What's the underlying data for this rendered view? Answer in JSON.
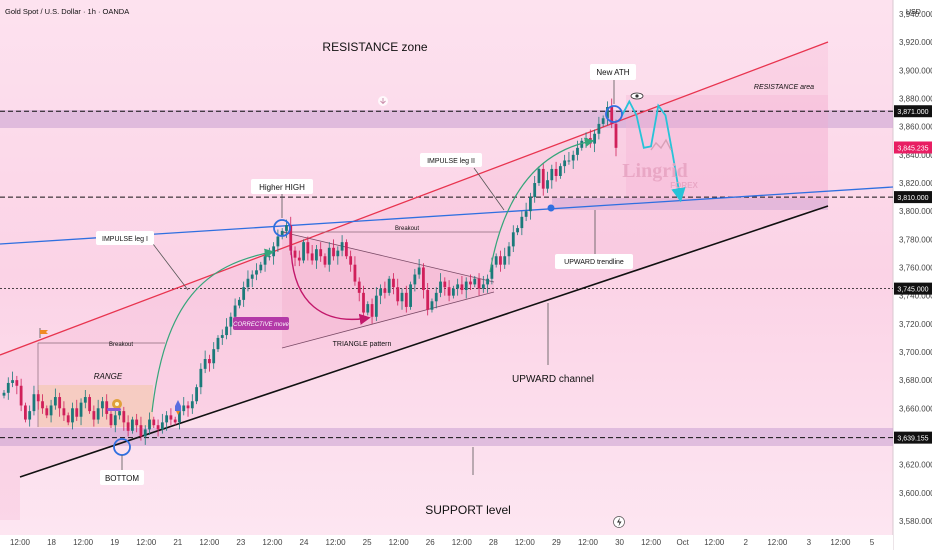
{
  "header": {
    "title": "Gold Spot / U.S. Dollar · 1h · OANDA",
    "currency": "USD"
  },
  "logo": {
    "word": "Lingrid",
    "sub": "FOREX"
  },
  "icons": [
    "eye-icon",
    "lightning-icon",
    "snail-icon",
    "rocket-icon",
    "flag-icon",
    "download-icon"
  ],
  "colors": {
    "background": "#fde7f2",
    "bull": "#1b7a7a",
    "bear": "#d0205a",
    "resistance_line": "#e8344f",
    "support_line": "#111111",
    "blue_trend": "#2f6fe0",
    "projection": "#27c3d8",
    "arrow_green": "#35a57a",
    "arrow_magenta": "#c2186b",
    "price_tag": "#e81e63"
  },
  "annotations": {
    "resistance_zone": "RESISTANCE zone",
    "resistance_area": "RESISTANCE area",
    "new_ath": "New ATH",
    "higher_high": "Higher HIGH",
    "impulse_leg_1": "IMPULSE leg I",
    "impulse_leg_2": "IMPULSE leg II",
    "breakout_1": "Breakout",
    "breakout_2": "Breakout",
    "range": "RANGE",
    "corrective_move": "CORRECTIVE move",
    "triangle_pattern": "TRIANGLE pattern",
    "upward_trendline": "UPWARD trendline",
    "upward_channel": "UPWARD channel",
    "bottom": "BOTTOM",
    "support_level": "SUPPORT level"
  },
  "chart_data": {
    "type": "candlestick",
    "title": "Gold Spot / U.S. Dollar · 1h · OANDA",
    "ylabel": "USD",
    "ylim": [
      3570,
      3950
    ],
    "y_ticks": [
      3580,
      3600,
      3620,
      3640,
      3660,
      3680,
      3700,
      3720,
      3740,
      3760,
      3780,
      3800,
      3820,
      3840,
      3860,
      3880,
      3900,
      3920,
      3940
    ],
    "x_tick_labels": [
      "12:00",
      "18",
      "12:00",
      "19",
      "12:00",
      "21",
      "12:00",
      "23",
      "12:00",
      "24",
      "12:00",
      "25",
      "12:00",
      "26",
      "12:00",
      "28",
      "12:00",
      "29",
      "12:00",
      "30",
      "12:00",
      "Oct",
      "12:00",
      "2",
      "12:00",
      "3",
      "12:00",
      "5"
    ],
    "price_levels": [
      {
        "value": 3871.0,
        "label": "3,871.000",
        "style": "dashed"
      },
      {
        "value": 3845.235,
        "label": "3,845.235",
        "style": "current"
      },
      {
        "value": 3810.0,
        "label": "3,810.000",
        "style": "dashed"
      },
      {
        "value": 3745.0,
        "label": "3,745.000",
        "style": "dotted"
      },
      {
        "value": 3639.155,
        "label": "3,639.155",
        "style": "dashed"
      }
    ],
    "zones": [
      {
        "name": "resistance",
        "from": 3863,
        "to": 3878
      },
      {
        "name": "support",
        "from": 3630,
        "to": 3645
      },
      {
        "name": "flip",
        "from": 3806,
        "to": 3815
      }
    ],
    "series": [
      {
        "close": [
          3671,
          3678,
          3680,
          3676,
          3662,
          3652,
          3658,
          3670,
          3665,
          3660,
          3655,
          3662,
          3668,
          3660,
          3655,
          3650,
          3660,
          3654,
          3664,
          3668,
          3658,
          3652,
          3660,
          3665,
          3656,
          3648,
          3655,
          3658,
          3650,
          3644,
          3652,
          3648,
          3640,
          3645,
          3652,
          3648,
          3645,
          3650,
          3655,
          3652,
          3650,
          3658,
          3662,
          3660,
          3665,
          3675,
          3688,
          3695,
          3692,
          3702,
          3710,
          3712,
          3718,
          3725,
          3733,
          3737,
          3746,
          3752,
          3755,
          3758,
          3762,
          3768,
          3768,
          3775,
          3782,
          3786,
          3790,
          3772,
          3767,
          3765,
          3778,
          3770,
          3765,
          3773,
          3768,
          3762,
          3774,
          3768,
          3772,
          3778,
          3768,
          3762,
          3750,
          3742,
          3728,
          3734,
          3725,
          3740,
          3745,
          3742,
          3752,
          3746,
          3736,
          3742,
          3732,
          3748,
          3755,
          3760,
          3744,
          3730,
          3736,
          3742,
          3750,
          3746,
          3740,
          3745,
          3748,
          3744,
          3750,
          3748,
          3752,
          3745,
          3748,
          3752,
          3762,
          3768,
          3762,
          3768,
          3775,
          3785,
          3788,
          3796,
          3800,
          3810,
          3820,
          3830,
          3816,
          3822,
          3830,
          3825,
          3832,
          3836,
          3836,
          3840,
          3845,
          3850,
          3852,
          3848,
          3855,
          3862,
          3866,
          3874,
          3862,
          3845
        ]
      }
    ],
    "projection": [
      3868,
      3878,
      3868,
      3845,
      3846,
      3875,
      3868,
      3840,
      3810
    ]
  }
}
